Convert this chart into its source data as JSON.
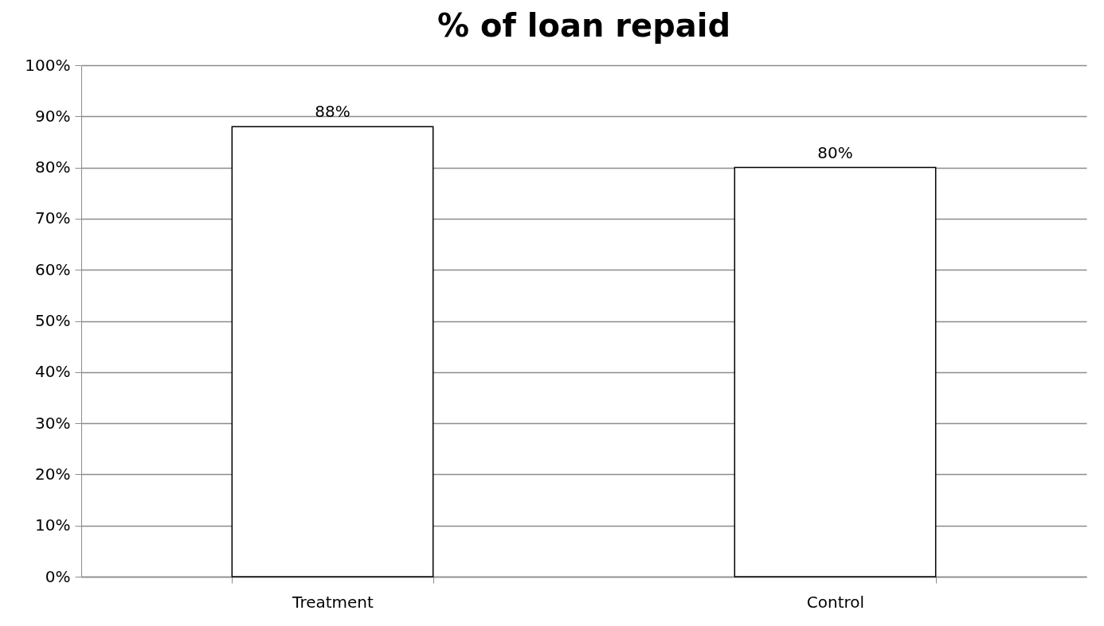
{
  "chart_data": {
    "type": "bar",
    "title": "% of loan repaid",
    "categories": [
      "Treatment",
      "Control"
    ],
    "values": [
      88,
      80
    ],
    "value_labels": [
      "88%",
      "80%"
    ],
    "color": "#ffffff",
    "ylim": [
      0,
      100
    ],
    "yticks": [
      {
        "value": 0,
        "label": "0%"
      },
      {
        "value": 10,
        "label": "10%"
      },
      {
        "value": 20,
        "label": "20%"
      },
      {
        "value": 30,
        "label": "30%"
      },
      {
        "value": 40,
        "label": "40%"
      },
      {
        "value": 50,
        "label": "50%"
      },
      {
        "value": 60,
        "label": "60%"
      },
      {
        "value": 70,
        "label": "70%"
      },
      {
        "value": 80,
        "label": "80%"
      },
      {
        "value": 90,
        "label": "90%"
      },
      {
        "value": 100,
        "label": "100%"
      }
    ],
    "grid": "y"
  }
}
